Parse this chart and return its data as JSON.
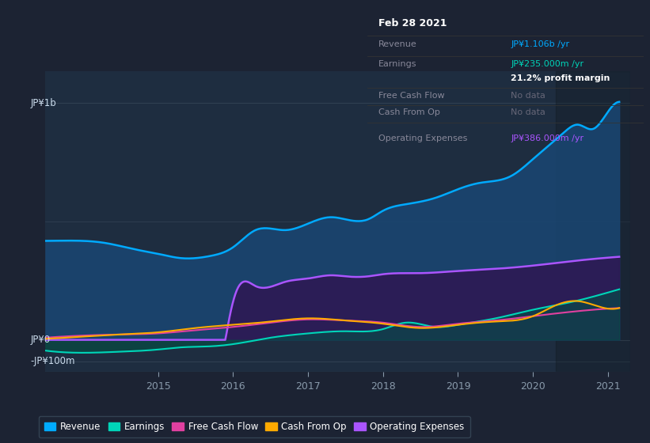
{
  "bg_color": "#1c2333",
  "chart_bg": "#1e2d40",
  "ylabel_top": "JP¥1b",
  "ylabel_zero": "JP¥0",
  "ylabel_neg": "-JP¥100m",
  "x_ticks": [
    "2015",
    "2016",
    "2017",
    "2018",
    "2019",
    "2020",
    "2021"
  ],
  "ylim_min": -150,
  "ylim_max": 1250,
  "series": {
    "Revenue": {
      "color": "#00aaff",
      "fill": "#1a4570"
    },
    "Earnings": {
      "color": "#00d4b8",
      "fill": "#006655"
    },
    "FreeCashFlow": {
      "color": "#e040a0",
      "fill": "#e040a0"
    },
    "CashFromOp": {
      "color": "#ffaa00",
      "fill": "#ffaa00"
    },
    "OperatingExpenses": {
      "color": "#aa55ff",
      "fill": "#3a1a6a"
    }
  },
  "tooltip": {
    "date": "Feb 28 2021",
    "revenue_label": "Revenue",
    "revenue_val": "JP¥1.106b /yr",
    "revenue_color": "#00aaff",
    "earnings_label": "Earnings",
    "earnings_val": "JP¥235.000m /yr",
    "earnings_color": "#00d4b8",
    "margin_val": "21.2% profit margin",
    "fcf_label": "Free Cash Flow",
    "fcf_val": "No data",
    "cfop_label": "Cash From Op",
    "cfop_val": "No data",
    "opex_label": "Operating Expenses",
    "opex_val": "JP¥386.000m /yr",
    "opex_color": "#aa55ff"
  },
  "legend": [
    {
      "label": "Revenue",
      "color": "#00aaff"
    },
    {
      "label": "Earnings",
      "color": "#00d4b8"
    },
    {
      "label": "Free Cash Flow",
      "color": "#e040a0"
    },
    {
      "label": "Cash From Op",
      "color": "#ffaa00"
    },
    {
      "label": "Operating Expenses",
      "color": "#aa55ff"
    }
  ],
  "rev_x": [
    2013.5,
    2014.0,
    2014.3,
    2014.7,
    2015.0,
    2015.3,
    2015.7,
    2016.0,
    2016.3,
    2016.7,
    2017.0,
    2017.3,
    2017.5,
    2017.8,
    2018.0,
    2018.3,
    2018.7,
    2019.0,
    2019.3,
    2019.7,
    2020.0,
    2020.2,
    2020.4,
    2020.6,
    2020.8,
    2021.0,
    2021.15
  ],
  "rev_y": [
    460,
    460,
    450,
    420,
    400,
    380,
    390,
    430,
    510,
    510,
    540,
    570,
    560,
    560,
    600,
    630,
    660,
    700,
    730,
    760,
    840,
    900,
    960,
    1000,
    980,
    1060,
    1106
  ],
  "earn_x": [
    2013.5,
    2014.0,
    2014.5,
    2015.0,
    2015.3,
    2015.7,
    2016.0,
    2016.5,
    2017.0,
    2017.5,
    2018.0,
    2018.3,
    2018.7,
    2019.0,
    2019.5,
    2020.0,
    2020.5,
    2021.0,
    2021.15
  ],
  "earn_y": [
    -50,
    -60,
    -55,
    -45,
    -35,
    -30,
    -20,
    10,
    30,
    40,
    50,
    80,
    60,
    70,
    100,
    140,
    175,
    220,
    235
  ],
  "fcf_x": [
    2013.5,
    2014.0,
    2014.5,
    2015.0,
    2015.5,
    2016.0,
    2016.5,
    2017.0,
    2017.5,
    2018.0,
    2018.5,
    2019.0,
    2019.5,
    2020.0,
    2020.5,
    2021.0,
    2021.15
  ],
  "fcf_y": [
    10,
    20,
    25,
    30,
    45,
    60,
    80,
    95,
    90,
    80,
    60,
    75,
    90,
    110,
    130,
    145,
    148
  ],
  "cfop_x": [
    2013.5,
    2014.0,
    2014.5,
    2015.0,
    2015.5,
    2016.0,
    2016.5,
    2017.0,
    2017.5,
    2018.0,
    2018.5,
    2019.0,
    2019.5,
    2020.0,
    2020.3,
    2020.6,
    2021.0,
    2021.15
  ],
  "cfop_y": [
    5,
    15,
    25,
    35,
    55,
    70,
    85,
    100,
    90,
    75,
    55,
    70,
    85,
    110,
    160,
    180,
    145,
    148
  ],
  "opex_x": [
    2013.5,
    2015.9,
    2016.05,
    2016.3,
    2016.7,
    2017.0,
    2017.3,
    2017.5,
    2017.8,
    2018.0,
    2018.5,
    2019.0,
    2019.5,
    2020.0,
    2020.5,
    2021.0,
    2021.15
  ],
  "opex_y": [
    0,
    0,
    230,
    250,
    270,
    285,
    300,
    295,
    295,
    305,
    310,
    320,
    330,
    345,
    365,
    382,
    386
  ]
}
